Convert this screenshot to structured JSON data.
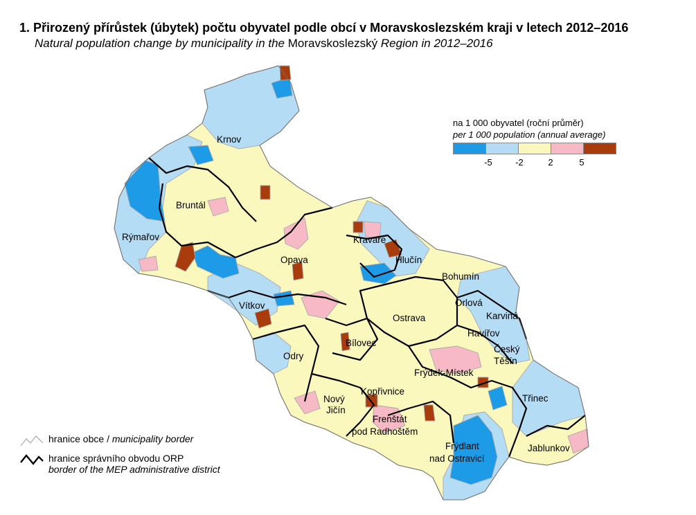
{
  "title": {
    "cz": "1. Přirozený přírůstek (úbytek) počtu obyvatel podle obcí v Moravskoslezském kraji v letech 2012–2016",
    "en_part1": "Natural population change by municipality in the",
    "en_region": "Moravskoslezský",
    "en_part2": "Region in 2012–2016"
  },
  "legend": {
    "unit_cz": "na 1 000 obyvatel (roční průměr)",
    "unit_en": "per 1 000 population (annual average)",
    "classes": [
      {
        "color": "#1d9be6",
        "range": "< -5"
      },
      {
        "color": "#b5dcf5",
        "range": "-5 to -2"
      },
      {
        "color": "#fbf8bd",
        "range": "-2 to 2"
      },
      {
        "color": "#f7b9c6",
        "range": "2 to 5"
      },
      {
        "color": "#a83c0c",
        "range": "> 5"
      }
    ],
    "breaks": [
      "-5",
      "-2",
      "2",
      "5"
    ]
  },
  "towns": {
    "krnov": "Krnov",
    "bruntal": "Bruntál",
    "rymarov": "Rýmařov",
    "opava": "Opava",
    "kravare": "Kravaře",
    "hlucin": "Hlučín",
    "bohumin": "Bohumín",
    "orlova": "Orlová",
    "karvina": "Karviná",
    "havirov": "Havířov",
    "cesky_tesin_1": "Český",
    "cesky_tesin_2": "Těšín",
    "ostrava": "Ostrava",
    "vitkov": "Vítkov",
    "bilovec": "Bílovec",
    "odry": "Odry",
    "frydek_mistek": "Frýdek-Místek",
    "koprivnice": "Kopřivnice",
    "novy_jicin_1": "Nový",
    "novy_jicin_2": "Jičín",
    "frenstat_1": "Frenštát",
    "frenstat_2": "pod Radhoštěm",
    "trinec": "Třinec",
    "jablunkov": "Jablunkov",
    "frydlant_1": "Frýdlant",
    "frydlant_2": "nad Ostravicí"
  },
  "borders_legend": {
    "municipality_cz": "hranice obce",
    "municipality_en": "municipality border",
    "orp_cz": "hranice správního obvodu ORP",
    "orp_en": "border of the MEP administrative district"
  }
}
